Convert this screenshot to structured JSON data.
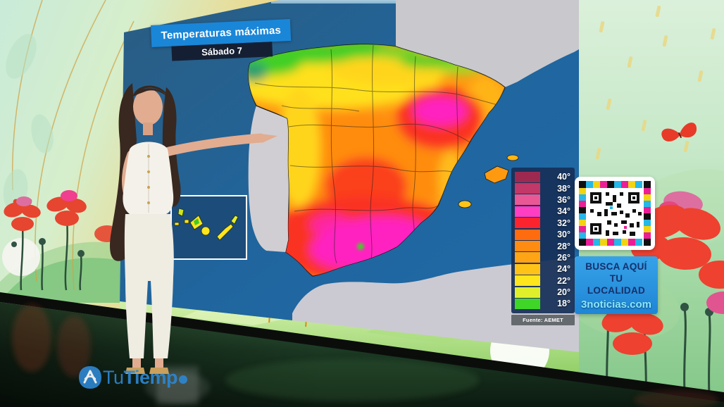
{
  "screen": {
    "title": "Temperaturas máximas",
    "subtitle": "Sábado 7",
    "legend": {
      "source": "Fuente: AEMET",
      "items": [
        {
          "temp": "40°",
          "color": "#9e2950"
        },
        {
          "temp": "38°",
          "color": "#c23868"
        },
        {
          "temp": "36°",
          "color": "#ea5795"
        },
        {
          "temp": "34°",
          "color": "#ff3ec2"
        },
        {
          "temp": "32°",
          "color": "#fa232e"
        },
        {
          "temp": "30°",
          "color": "#ff6c10"
        },
        {
          "temp": "28°",
          "color": "#ff8c12"
        },
        {
          "temp": "26°",
          "color": "#ffa414"
        },
        {
          "temp": "24°",
          "color": "#ffc318"
        },
        {
          "temp": "22°",
          "color": "#ffe51c"
        },
        {
          "temp": "20°",
          "color": "#e0ef2c"
        },
        {
          "temp": "18°",
          "color": "#3fd628"
        }
      ]
    }
  },
  "qr_panel": {
    "line1": "BUSCA AQUÍ",
    "line2": "TU",
    "line3": "LOCALIDAD",
    "domain": "3noticias.com",
    "icon": "qr-code"
  },
  "logo": {
    "part1": "Tu",
    "part2": "Tiemp",
    "icon": "antena3-a-icon"
  },
  "colors": {
    "title_bar_blue": "#1a86d8",
    "title_bar_navy": "#151f33",
    "banner_blue": "#1f85d6",
    "banner_text_navy": "#15306b",
    "domain_cyan": "#8ae8fa",
    "logo_blue": "#2e86d0",
    "sea_blue": "#1e6ba9",
    "land_grey": "#cbcad2"
  }
}
